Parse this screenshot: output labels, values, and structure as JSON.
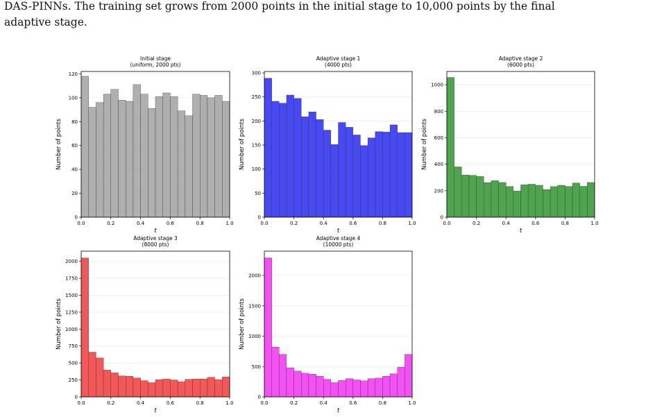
{
  "caption": {
    "line1": "DAS-PINNs.  The training set grows from 2000 points in the initial stage to 10,000 points by the final",
    "line2": "adaptive stage."
  },
  "chart_data": [
    {
      "type": "bar",
      "title": "Initial stage",
      "subtitle": "(uniform, 2000 pts)",
      "xlabel": "t",
      "ylabel": "Number of points",
      "color": "#a6a6a6",
      "xlim": [
        0,
        1
      ],
      "ylim": [
        0,
        122
      ],
      "yticks": [
        0,
        20,
        40,
        60,
        80,
        100,
        120
      ],
      "xticks": [
        0.0,
        0.2,
        0.4,
        0.6,
        0.8,
        1.0
      ],
      "bins": 20,
      "values": [
        118,
        92,
        96,
        103,
        107,
        98,
        97,
        111,
        103,
        91,
        101,
        104,
        101,
        89,
        85,
        103,
        102,
        100,
        102,
        97
      ]
    },
    {
      "type": "bar",
      "title": "Adaptive stage 1",
      "subtitle": "(4000 pts)",
      "xlabel": "t",
      "ylabel": "Number of points",
      "color": "#3535f2",
      "xlim": [
        0,
        1
      ],
      "ylim": [
        0,
        303
      ],
      "yticks": [
        0,
        50,
        100,
        150,
        200,
        250,
        300
      ],
      "xticks": [
        0.0,
        0.2,
        0.4,
        0.6,
        0.8,
        1.0
      ],
      "bins": 20,
      "values": [
        289,
        241,
        237,
        254,
        247,
        209,
        219,
        203,
        181,
        151,
        197,
        187,
        171,
        149,
        165,
        178,
        177,
        192,
        176,
        176
      ]
    },
    {
      "type": "bar",
      "title": "Adaptive stage 2",
      "subtitle": "(6000 pts)",
      "xlabel": "t",
      "ylabel": "Number of points",
      "color": "#3d9a3d",
      "xlim": [
        0,
        1
      ],
      "ylim": [
        0,
        1100
      ],
      "yticks": [
        0,
        200,
        400,
        600,
        800,
        1000
      ],
      "xticks": [
        0.0,
        0.2,
        0.4,
        0.6,
        0.8,
        1.0
      ],
      "bins": 20,
      "values": [
        1055,
        380,
        318,
        316,
        307,
        261,
        276,
        262,
        232,
        197,
        245,
        249,
        241,
        209,
        231,
        241,
        232,
        258,
        233,
        262
      ]
    },
    {
      "type": "bar",
      "title": "Adaptive stage 3",
      "subtitle": "(8000 pts)",
      "xlabel": "t",
      "ylabel": "Number of points",
      "color": "#f24646",
      "xlim": [
        0,
        1
      ],
      "ylim": [
        0,
        2150
      ],
      "yticks": [
        0,
        250,
        500,
        750,
        1000,
        1250,
        1500,
        1750,
        2000
      ],
      "xticks": [
        0.0,
        0.2,
        0.4,
        0.6,
        0.8,
        1.0
      ],
      "bins": 20,
      "values": [
        2050,
        660,
        575,
        395,
        355,
        310,
        305,
        280,
        240,
        210,
        255,
        265,
        250,
        225,
        260,
        265,
        265,
        290,
        255,
        295
      ]
    },
    {
      "type": "bar",
      "title": "Adaptive stage 4",
      "subtitle": "(10000 pts)",
      "xlabel": "t",
      "ylabel": "Number of points",
      "color": "#f23ef2",
      "xlim": [
        0,
        1
      ],
      "ylim": [
        0,
        2400
      ],
      "yticks": [
        0,
        500,
        1000,
        1500,
        2000
      ],
      "xticks": [
        0.0,
        0.2,
        0.4,
        0.6,
        0.8,
        1.0
      ],
      "bins": 20,
      "values": [
        2290,
        820,
        700,
        480,
        425,
        390,
        375,
        340,
        290,
        235,
        270,
        300,
        280,
        265,
        300,
        310,
        340,
        380,
        490,
        700
      ]
    }
  ]
}
